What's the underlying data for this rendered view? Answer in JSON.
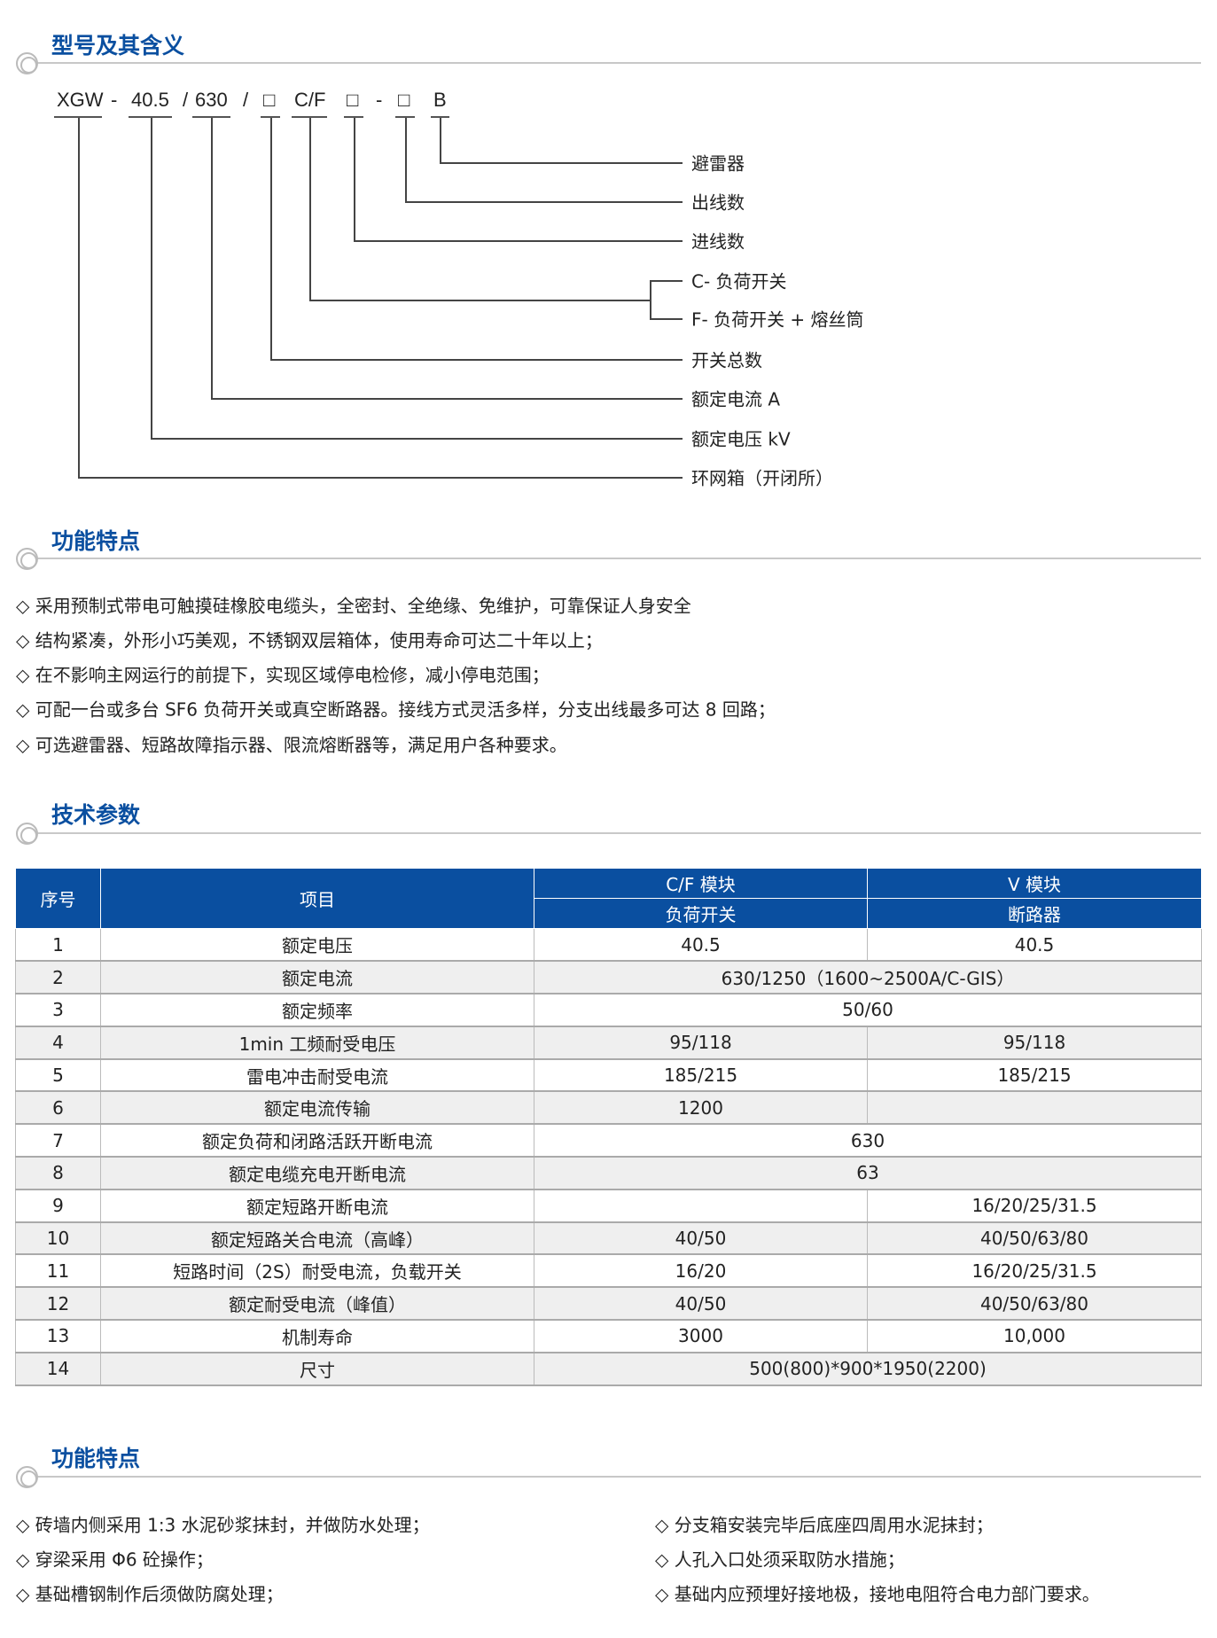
{
  "sections": {
    "s1": "型号及其含义",
    "s2": "功能特点",
    "s3": "技术参数",
    "s4": "功能特点"
  },
  "model_code": [
    "XGW",
    "-",
    "40.5",
    "/",
    "630",
    "/",
    "□",
    "C/F",
    "□",
    "-",
    "□",
    "B"
  ],
  "meanings": [
    "避雷器",
    "出线数",
    "进线数",
    "C- 负荷开关",
    "F- 负荷开关 + 熔丝筒",
    "开关总数",
    "额定电流 A",
    "额定电压 kV",
    "环网箱（开闭所）"
  ],
  "features": [
    "◇ 采用预制式带电可触摸硅橡胶电缆头，全密封、全绝缘、免维护，可靠保证人身安全",
    "◇ 结构紧凑，外形小巧美观，不锈钢双层箱体，使用寿命可达二十年以上；",
    "◇ 在不影响主网运行的前提下，实现区域停电检修，减小停电范围；",
    "◇ 可配一台或多台 SF6 负荷开关或真空断路器。接线方式灵活多样，分支出线最多可达 8 回路；",
    "◇ 可选避雷器、短路故障指示器、限流熔断器等，满足用户各种要求。"
  ],
  "table": {
    "h_no": "序号",
    "h_item": "项目",
    "h_cf": "C/F 模块",
    "h_v": "V 模块",
    "h_cf_sub": "负荷开关",
    "h_v_sub": "断路器",
    "rows": [
      [
        "1",
        "额定电压",
        "40.5",
        "40.5"
      ],
      [
        "2",
        "额定电流",
        "630/1250（1600~2500A/C-GIS）"
      ],
      [
        "3",
        "额定频率",
        "50/60"
      ],
      [
        "4",
        "1min 工频耐受电压",
        "95/118",
        "95/118"
      ],
      [
        "5",
        "雷电冲击耐受电流",
        "185/215",
        "185/215"
      ],
      [
        "6",
        "额定电流传输",
        "1200",
        ""
      ],
      [
        "7",
        "额定负荷和闭路活跃开断电流",
        "630"
      ],
      [
        "8",
        "额定电缆充电开断电流",
        "63"
      ],
      [
        "9",
        "额定短路开断电流",
        "",
        "16/20/25/31.5"
      ],
      [
        "10",
        "额定短路关合电流（高峰）",
        "40/50",
        "40/50/63/80"
      ],
      [
        "11",
        "短路时间（2S）耐受电流，负载开关",
        "16/20",
        "16/20/25/31.5"
      ],
      [
        "12",
        "额定耐受电流（峰值）",
        "40/50",
        "40/50/63/80"
      ],
      [
        "13",
        "机制寿命",
        "3000",
        "10,000"
      ],
      [
        "14",
        "尺寸",
        "500(800)*900*1950(2200)"
      ]
    ]
  },
  "install": {
    "left": [
      "◇ 砖墙内侧采用 1:3 水泥砂浆抹封，并做防水处理；",
      "◇ 穿梁采用 Φ6 砼操作；",
      "◇ 基础槽钢制作后须做防腐处理；"
    ],
    "right": [
      "◇ 分支箱安装完毕后底座四周用水泥抹封；",
      "◇ 人孔入口处须采取防水措施；",
      "◇ 基础内应预埋好接地极，接地电阻符合电力部门要求。"
    ]
  }
}
